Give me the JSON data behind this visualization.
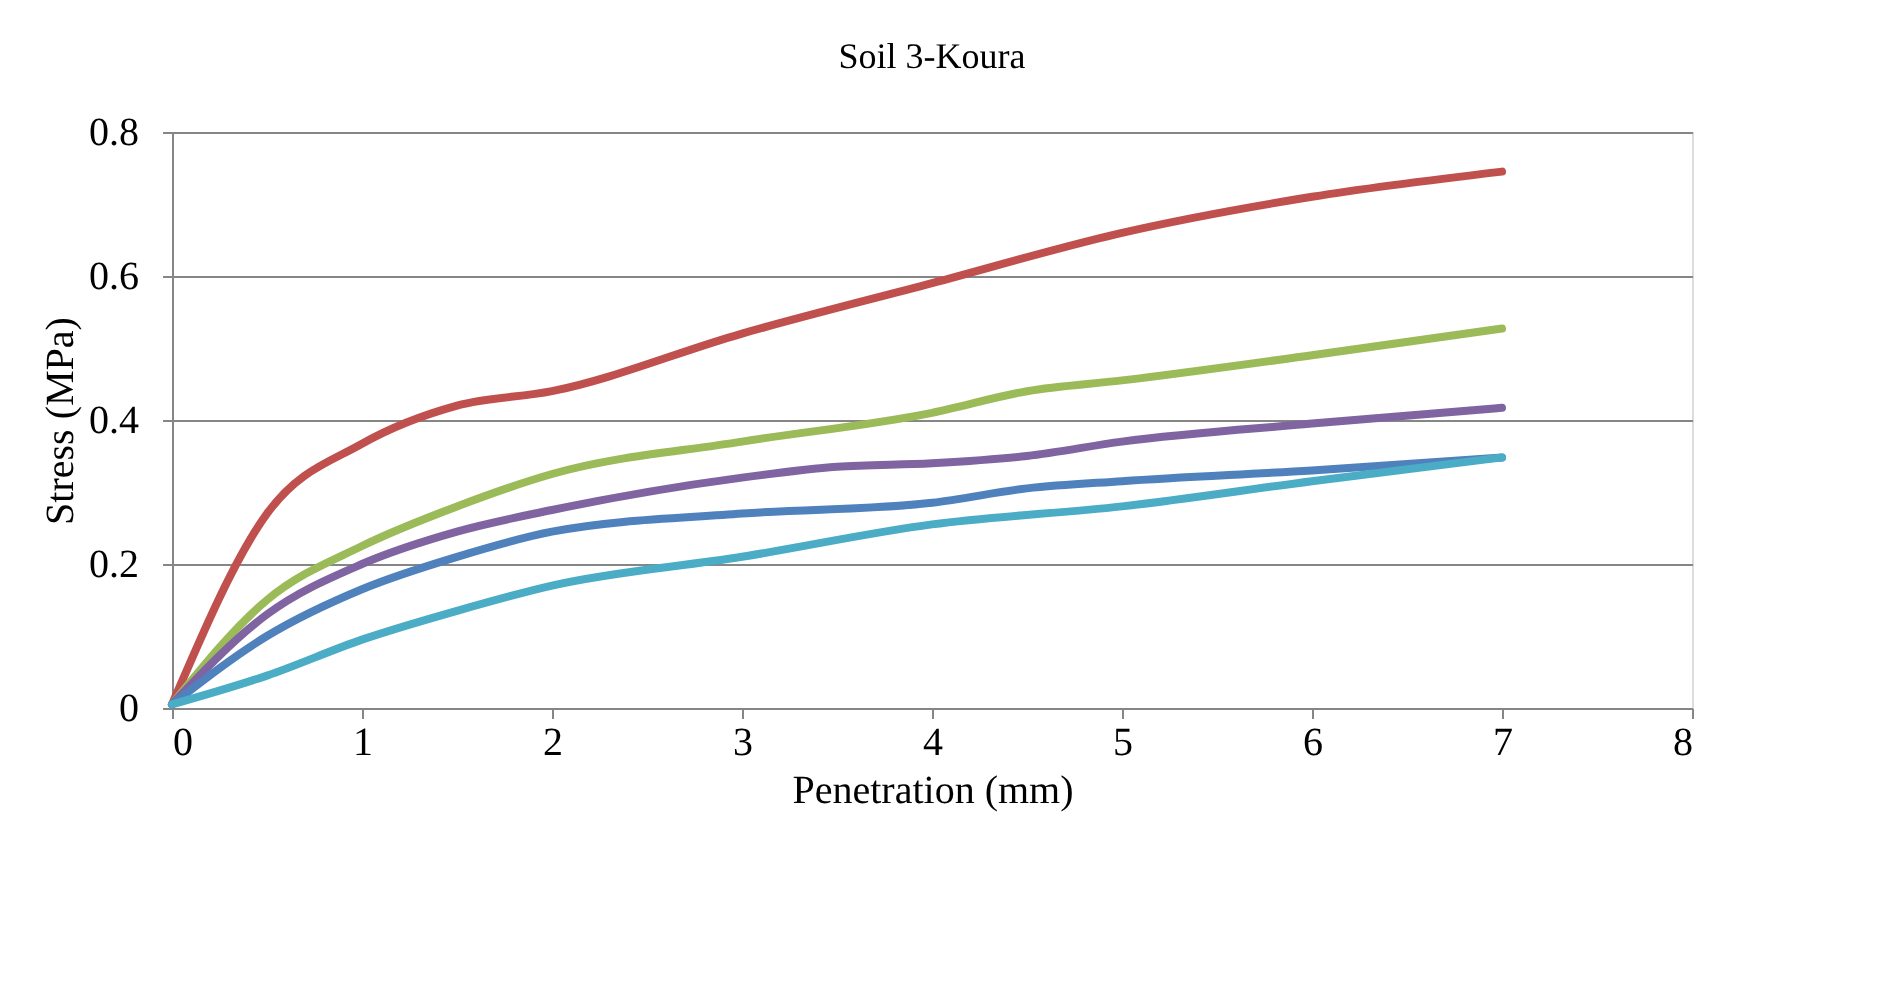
{
  "chart_data": {
    "type": "line",
    "title": "Soil 3-Koura",
    "xlabel": "Penetration (mm)",
    "ylabel": "Stress (MPa)",
    "xlim": [
      0,
      8
    ],
    "xticks": [
      0,
      1,
      2,
      3,
      4,
      5,
      6,
      7,
      8
    ],
    "ylim": [
      0,
      0.8
    ],
    "yticks": [
      0,
      0.2,
      0.4,
      0.6,
      0.8
    ],
    "grid": "y",
    "legend": false,
    "marker": "none",
    "line_style": "solid",
    "series": [
      {
        "color": "#c0504d",
        "x": [
          0,
          0.5,
          1,
          1.5,
          2,
          3,
          4,
          5,
          6,
          7
        ],
        "values": [
          0.005,
          0.27,
          0.367,
          0.42,
          0.44,
          0.52,
          0.59,
          0.66,
          0.71,
          0.745
        ]
      },
      {
        "color": "#9bbb59",
        "x": [
          0,
          0.5,
          1,
          1.5,
          2,
          3,
          4,
          4.5,
          5,
          6,
          7
        ],
        "values": [
          0.005,
          0.15,
          0.225,
          0.28,
          0.325,
          0.37,
          0.41,
          0.44,
          0.455,
          0.49,
          0.527
        ]
      },
      {
        "color": "#8064a2",
        "x": [
          0,
          0.5,
          1,
          1.5,
          2,
          3,
          3.5,
          4,
          4.5,
          5,
          6,
          7
        ],
        "values": [
          0.005,
          0.13,
          0.2,
          0.245,
          0.275,
          0.32,
          0.335,
          0.34,
          0.35,
          0.37,
          0.395,
          0.417
        ]
      },
      {
        "color": "#4f81bd",
        "x": [
          0,
          0.5,
          1,
          1.5,
          2,
          3,
          4,
          4.5,
          5,
          6,
          7
        ],
        "values": [
          0.005,
          0.1,
          0.165,
          0.21,
          0.245,
          0.27,
          0.285,
          0.305,
          0.315,
          0.33,
          0.348
        ]
      },
      {
        "color": "#4bacc6",
        "x": [
          0,
          0.5,
          1,
          1.5,
          2,
          3,
          4,
          5,
          6,
          7
        ],
        "values": [
          0.005,
          0.045,
          0.095,
          0.135,
          0.17,
          0.21,
          0.255,
          0.28,
          0.315,
          0.348
        ]
      }
    ]
  }
}
